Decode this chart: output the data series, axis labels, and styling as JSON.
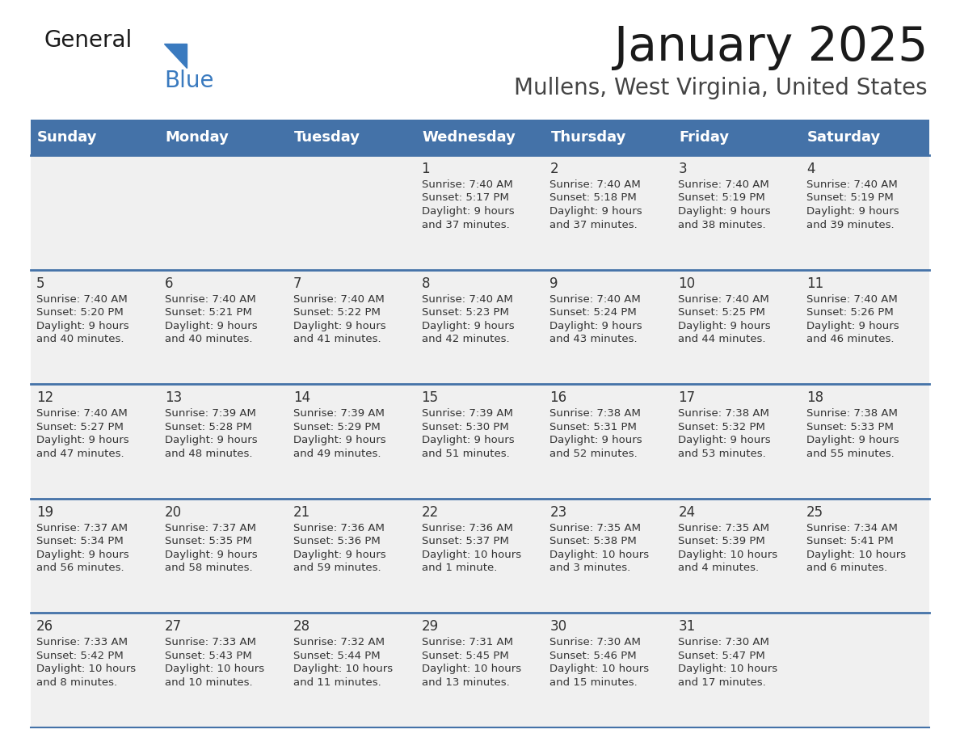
{
  "title": "January 2025",
  "subtitle": "Mullens, West Virginia, United States",
  "header_color": "#4472a8",
  "header_text_color": "#ffffff",
  "day_names": [
    "Sunday",
    "Monday",
    "Tuesday",
    "Wednesday",
    "Thursday",
    "Friday",
    "Saturday"
  ],
  "bg_color": "#ffffff",
  "cell_bg": "#f0f0f0",
  "separator_color": "#4472a8",
  "text_color": "#333333",
  "days": [
    {
      "day": 1,
      "col": 3,
      "row": 0,
      "sunrise": "7:40 AM",
      "sunset": "5:17 PM",
      "daylight_line1": "Daylight: 9 hours",
      "daylight_line2": "and 37 minutes."
    },
    {
      "day": 2,
      "col": 4,
      "row": 0,
      "sunrise": "7:40 AM",
      "sunset": "5:18 PM",
      "daylight_line1": "Daylight: 9 hours",
      "daylight_line2": "and 37 minutes."
    },
    {
      "day": 3,
      "col": 5,
      "row": 0,
      "sunrise": "7:40 AM",
      "sunset": "5:19 PM",
      "daylight_line1": "Daylight: 9 hours",
      "daylight_line2": "and 38 minutes."
    },
    {
      "day": 4,
      "col": 6,
      "row": 0,
      "sunrise": "7:40 AM",
      "sunset": "5:19 PM",
      "daylight_line1": "Daylight: 9 hours",
      "daylight_line2": "and 39 minutes."
    },
    {
      "day": 5,
      "col": 0,
      "row": 1,
      "sunrise": "7:40 AM",
      "sunset": "5:20 PM",
      "daylight_line1": "Daylight: 9 hours",
      "daylight_line2": "and 40 minutes."
    },
    {
      "day": 6,
      "col": 1,
      "row": 1,
      "sunrise": "7:40 AM",
      "sunset": "5:21 PM",
      "daylight_line1": "Daylight: 9 hours",
      "daylight_line2": "and 40 minutes."
    },
    {
      "day": 7,
      "col": 2,
      "row": 1,
      "sunrise": "7:40 AM",
      "sunset": "5:22 PM",
      "daylight_line1": "Daylight: 9 hours",
      "daylight_line2": "and 41 minutes."
    },
    {
      "day": 8,
      "col": 3,
      "row": 1,
      "sunrise": "7:40 AM",
      "sunset": "5:23 PM",
      "daylight_line1": "Daylight: 9 hours",
      "daylight_line2": "and 42 minutes."
    },
    {
      "day": 9,
      "col": 4,
      "row": 1,
      "sunrise": "7:40 AM",
      "sunset": "5:24 PM",
      "daylight_line1": "Daylight: 9 hours",
      "daylight_line2": "and 43 minutes."
    },
    {
      "day": 10,
      "col": 5,
      "row": 1,
      "sunrise": "7:40 AM",
      "sunset": "5:25 PM",
      "daylight_line1": "Daylight: 9 hours",
      "daylight_line2": "and 44 minutes."
    },
    {
      "day": 11,
      "col": 6,
      "row": 1,
      "sunrise": "7:40 AM",
      "sunset": "5:26 PM",
      "daylight_line1": "Daylight: 9 hours",
      "daylight_line2": "and 46 minutes."
    },
    {
      "day": 12,
      "col": 0,
      "row": 2,
      "sunrise": "7:40 AM",
      "sunset": "5:27 PM",
      "daylight_line1": "Daylight: 9 hours",
      "daylight_line2": "and 47 minutes."
    },
    {
      "day": 13,
      "col": 1,
      "row": 2,
      "sunrise": "7:39 AM",
      "sunset": "5:28 PM",
      "daylight_line1": "Daylight: 9 hours",
      "daylight_line2": "and 48 minutes."
    },
    {
      "day": 14,
      "col": 2,
      "row": 2,
      "sunrise": "7:39 AM",
      "sunset": "5:29 PM",
      "daylight_line1": "Daylight: 9 hours",
      "daylight_line2": "and 49 minutes."
    },
    {
      "day": 15,
      "col": 3,
      "row": 2,
      "sunrise": "7:39 AM",
      "sunset": "5:30 PM",
      "daylight_line1": "Daylight: 9 hours",
      "daylight_line2": "and 51 minutes."
    },
    {
      "day": 16,
      "col": 4,
      "row": 2,
      "sunrise": "7:38 AM",
      "sunset": "5:31 PM",
      "daylight_line1": "Daylight: 9 hours",
      "daylight_line2": "and 52 minutes."
    },
    {
      "day": 17,
      "col": 5,
      "row": 2,
      "sunrise": "7:38 AM",
      "sunset": "5:32 PM",
      "daylight_line1": "Daylight: 9 hours",
      "daylight_line2": "and 53 minutes."
    },
    {
      "day": 18,
      "col": 6,
      "row": 2,
      "sunrise": "7:38 AM",
      "sunset": "5:33 PM",
      "daylight_line1": "Daylight: 9 hours",
      "daylight_line2": "and 55 minutes."
    },
    {
      "day": 19,
      "col": 0,
      "row": 3,
      "sunrise": "7:37 AM",
      "sunset": "5:34 PM",
      "daylight_line1": "Daylight: 9 hours",
      "daylight_line2": "and 56 minutes."
    },
    {
      "day": 20,
      "col": 1,
      "row": 3,
      "sunrise": "7:37 AM",
      "sunset": "5:35 PM",
      "daylight_line1": "Daylight: 9 hours",
      "daylight_line2": "and 58 minutes."
    },
    {
      "day": 21,
      "col": 2,
      "row": 3,
      "sunrise": "7:36 AM",
      "sunset": "5:36 PM",
      "daylight_line1": "Daylight: 9 hours",
      "daylight_line2": "and 59 minutes."
    },
    {
      "day": 22,
      "col": 3,
      "row": 3,
      "sunrise": "7:36 AM",
      "sunset": "5:37 PM",
      "daylight_line1": "Daylight: 10 hours",
      "daylight_line2": "and 1 minute."
    },
    {
      "day": 23,
      "col": 4,
      "row": 3,
      "sunrise": "7:35 AM",
      "sunset": "5:38 PM",
      "daylight_line1": "Daylight: 10 hours",
      "daylight_line2": "and 3 minutes."
    },
    {
      "day": 24,
      "col": 5,
      "row": 3,
      "sunrise": "7:35 AM",
      "sunset": "5:39 PM",
      "daylight_line1": "Daylight: 10 hours",
      "daylight_line2": "and 4 minutes."
    },
    {
      "day": 25,
      "col": 6,
      "row": 3,
      "sunrise": "7:34 AM",
      "sunset": "5:41 PM",
      "daylight_line1": "Daylight: 10 hours",
      "daylight_line2": "and 6 minutes."
    },
    {
      "day": 26,
      "col": 0,
      "row": 4,
      "sunrise": "7:33 AM",
      "sunset": "5:42 PM",
      "daylight_line1": "Daylight: 10 hours",
      "daylight_line2": "and 8 minutes."
    },
    {
      "day": 27,
      "col": 1,
      "row": 4,
      "sunrise": "7:33 AM",
      "sunset": "5:43 PM",
      "daylight_line1": "Daylight: 10 hours",
      "daylight_line2": "and 10 minutes."
    },
    {
      "day": 28,
      "col": 2,
      "row": 4,
      "sunrise": "7:32 AM",
      "sunset": "5:44 PM",
      "daylight_line1": "Daylight: 10 hours",
      "daylight_line2": "and 11 minutes."
    },
    {
      "day": 29,
      "col": 3,
      "row": 4,
      "sunrise": "7:31 AM",
      "sunset": "5:45 PM",
      "daylight_line1": "Daylight: 10 hours",
      "daylight_line2": "and 13 minutes."
    },
    {
      "day": 30,
      "col": 4,
      "row": 4,
      "sunrise": "7:30 AM",
      "sunset": "5:46 PM",
      "daylight_line1": "Daylight: 10 hours",
      "daylight_line2": "and 15 minutes."
    },
    {
      "day": 31,
      "col": 5,
      "row": 4,
      "sunrise": "7:30 AM",
      "sunset": "5:47 PM",
      "daylight_line1": "Daylight: 10 hours",
      "daylight_line2": "and 17 minutes."
    }
  ],
  "num_rows": 5,
  "num_cols": 7,
  "logo_general_color": "#1a1a1a",
  "logo_blue_color": "#3a7abf",
  "logo_triangle_color": "#3a7abf"
}
